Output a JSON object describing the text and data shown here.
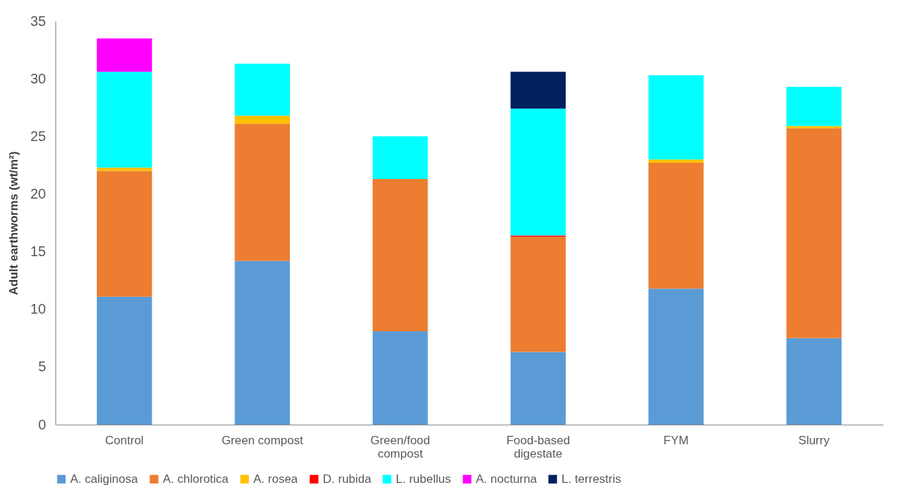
{
  "chart_data": {
    "type": "bar",
    "stacked": true,
    "ylabel": "Adult earthworms (wt/m²)",
    "categories": [
      "Control",
      "Green compost",
      "Green/food compost",
      "Food-based digestate",
      "FYM",
      "Slurry"
    ],
    "series": [
      {
        "name": "A. caliginosa",
        "color": "#5b9bd5",
        "values": [
          11.1,
          14.2,
          8.1,
          6.3,
          11.8,
          7.5
        ]
      },
      {
        "name": "A. chlorotica",
        "color": "#ed7d31",
        "values": [
          10.9,
          11.9,
          13.2,
          10.0,
          10.9,
          18.2
        ]
      },
      {
        "name": "A. rosea",
        "color": "#ffc000",
        "values": [
          0.3,
          0.7,
          0,
          0,
          0.3,
          0.2
        ]
      },
      {
        "name": "D. rubida",
        "color": "#ff0000",
        "values": [
          0,
          0,
          0,
          0.1,
          0,
          0
        ]
      },
      {
        "name": "L. rubellus",
        "color": "#00ffff",
        "values": [
          8.3,
          4.5,
          3.7,
          11.0,
          7.3,
          3.4
        ]
      },
      {
        "name": "A. nocturna",
        "color": "#ff00ff",
        "values": [
          2.9,
          0,
          0,
          0,
          0,
          0
        ]
      },
      {
        "name": "L. terrestris",
        "color": "#002060",
        "values": [
          0,
          0,
          0,
          3.2,
          0,
          0
        ]
      }
    ],
    "ylim": [
      0,
      35
    ],
    "yticks": [
      0,
      5,
      10,
      15,
      20,
      25,
      30,
      35
    ],
    "grid": false,
    "legend": "bottom"
  }
}
